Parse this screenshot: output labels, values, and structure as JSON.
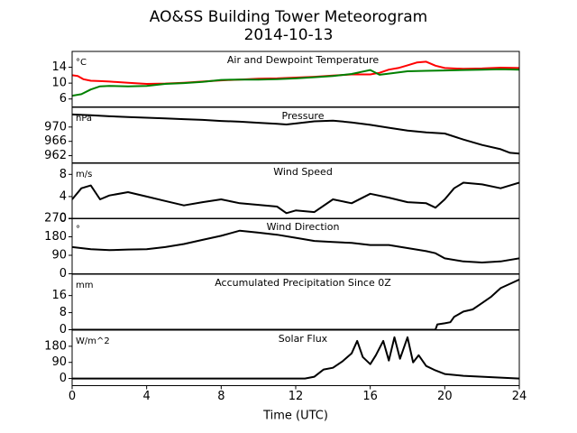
{
  "header": {
    "title": "AO&SS Building Tower Meteorogram",
    "subtitle": "2014-10-13"
  },
  "chart_data": {
    "type": "line",
    "xlabel": "Time (UTC)",
    "xlim": [
      0,
      24
    ],
    "x_ticks": [
      0,
      4,
      8,
      12,
      16,
      20,
      24
    ],
    "panels": [
      {
        "title": "Air and Dewpoint Temperature",
        "unit": "°C",
        "ylim": [
          4,
          18
        ],
        "y_ticks": [
          6,
          10,
          14
        ],
        "series": [
          {
            "color": "#ff0000",
            "x": [
              0,
              0.3,
              0.6,
              1,
              1.5,
              2,
              3,
              4,
              5,
              6,
              7,
              8,
              9,
              10,
              11,
              12,
              13,
              14,
              15,
              16,
              16.5,
              17,
              17.5,
              18,
              18.5,
              19,
              19.5,
              20,
              21,
              22,
              23,
              24
            ],
            "y": [
              12,
              11.8,
              11,
              10.6,
              10.5,
              10.4,
              10.1,
              9.8,
              9.9,
              10.1,
              10.4,
              10.7,
              10.9,
              11.1,
              11.2,
              11.4,
              11.6,
              11.9,
              12.2,
              12.2,
              12.6,
              13.4,
              13.8,
              14.5,
              15.2,
              15.4,
              14.4,
              13.8,
              13.6,
              13.7,
              13.9,
              13.8
            ]
          },
          {
            "color": "#008000",
            "x": [
              0,
              0.5,
              1,
              1.5,
              2,
              3,
              4,
              5,
              6,
              7,
              8,
              9,
              10,
              11,
              12,
              13,
              14,
              15,
              15.5,
              16,
              16.5,
              17,
              18,
              19,
              20,
              21,
              22,
              23,
              24
            ],
            "y": [
              6.8,
              7.2,
              8.4,
              9.2,
              9.3,
              9.2,
              9.3,
              9.8,
              10,
              10.3,
              10.8,
              10.9,
              10.9,
              11,
              11.2,
              11.5,
              11.8,
              12.3,
              12.8,
              13.3,
              12.1,
              12.4,
              13,
              13.1,
              13.2,
              13.3,
              13.4,
              13.5,
              13.4
            ]
          }
        ]
      },
      {
        "title": "Pressure",
        "unit": "hPa",
        "ylim": [
          960,
          975.5
        ],
        "y_ticks": [
          962,
          966,
          970
        ],
        "series": [
          {
            "color": "#000000",
            "x": [
              0,
              1,
              2,
              3,
              4,
              5,
              6,
              7,
              8,
              9,
              10,
              11,
              11.5,
              12,
              13,
              14,
              15,
              16,
              17,
              18,
              19,
              20,
              21,
              22,
              23,
              23.5,
              24
            ],
            "y": [
              973.5,
              973.3,
              973.0,
              972.8,
              972.6,
              972.4,
              972.2,
              972.0,
              971.7,
              971.5,
              971.2,
              970.9,
              970.7,
              971.0,
              971.6,
              971.8,
              971.3,
              970.6,
              969.8,
              969.0,
              968.5,
              968.2,
              966.5,
              965.0,
              963.8,
              962.8,
              962.6
            ]
          }
        ]
      },
      {
        "title": "Wind Speed",
        "unit": "m/s",
        "ylim": [
          0,
          10
        ],
        "y_ticks": [
          0,
          4,
          8
        ],
        "series": [
          {
            "color": "#000000",
            "x": [
              0,
              0.5,
              1,
              1.5,
              2,
              3,
              4,
              5,
              6,
              7,
              8,
              9,
              10,
              11,
              11.5,
              12,
              13,
              14,
              15,
              16,
              17,
              18,
              19,
              19.5,
              20,
              20.5,
              21,
              22,
              23,
              24
            ],
            "y": [
              3.5,
              5.5,
              6.0,
              3.5,
              4.2,
              4.8,
              4.0,
              3.2,
              2.4,
              3.0,
              3.5,
              2.8,
              2.5,
              2.2,
              1.0,
              1.5,
              1.2,
              3.5,
              2.8,
              4.5,
              3.8,
              3.0,
              2.8,
              2.0,
              3.5,
              5.5,
              6.5,
              6.2,
              5.5,
              6.5
            ]
          }
        ]
      },
      {
        "title": "Wind Direction",
        "unit": "°",
        "ylim": [
          0,
          270
        ],
        "y_ticks": [
          0,
          90,
          180,
          270
        ],
        "series": [
          {
            "color": "#000000",
            "x": [
              0,
              1,
              2,
              3,
              4,
              5,
              6,
              7,
              8,
              9,
              10,
              11,
              12,
              13,
              14,
              15,
              16,
              17,
              18,
              19,
              19.5,
              20,
              21,
              22,
              23,
              24
            ],
            "y": [
              130,
              120,
              115,
              118,
              120,
              130,
              145,
              165,
              185,
              210,
              200,
              190,
              175,
              160,
              155,
              150,
              140,
              140,
              125,
              110,
              100,
              75,
              60,
              55,
              60,
              75
            ]
          }
        ]
      },
      {
        "title": "Accumulated Precipitation Since 0Z",
        "unit": "mm",
        "ylim": [
          0,
          26
        ],
        "y_ticks": [
          0,
          8,
          16
        ],
        "series": [
          {
            "color": "#000000",
            "x": [
              0,
              19.5,
              19.6,
              20,
              20.3,
              20.5,
              21,
              21.5,
              22,
              22.5,
              23,
              23.5,
              24
            ],
            "y": [
              0,
              0,
              2.5,
              3.0,
              3.5,
              6.0,
              8.5,
              9.5,
              12.5,
              15.5,
              19.5,
              21.5,
              23.5
            ]
          }
        ]
      },
      {
        "title": "Solar Flux",
        "unit": "W/m^2",
        "ylim": [
          -40,
          270
        ],
        "y_ticks": [
          0,
          90,
          180
        ],
        "series": [
          {
            "color": "#000000",
            "x": [
              0,
              12.5,
              13,
              13.5,
              14,
              14.5,
              15,
              15.3,
              15.6,
              16,
              16.3,
              16.7,
              17,
              17.3,
              17.6,
              18,
              18.3,
              18.6,
              19,
              19.5,
              20,
              21,
              22,
              23,
              24
            ],
            "y": [
              0,
              0,
              10,
              50,
              60,
              95,
              140,
              210,
              120,
              80,
              130,
              210,
              100,
              230,
              110,
              230,
              90,
              130,
              70,
              45,
              25,
              15,
              10,
              5,
              0
            ]
          }
        ]
      }
    ]
  }
}
